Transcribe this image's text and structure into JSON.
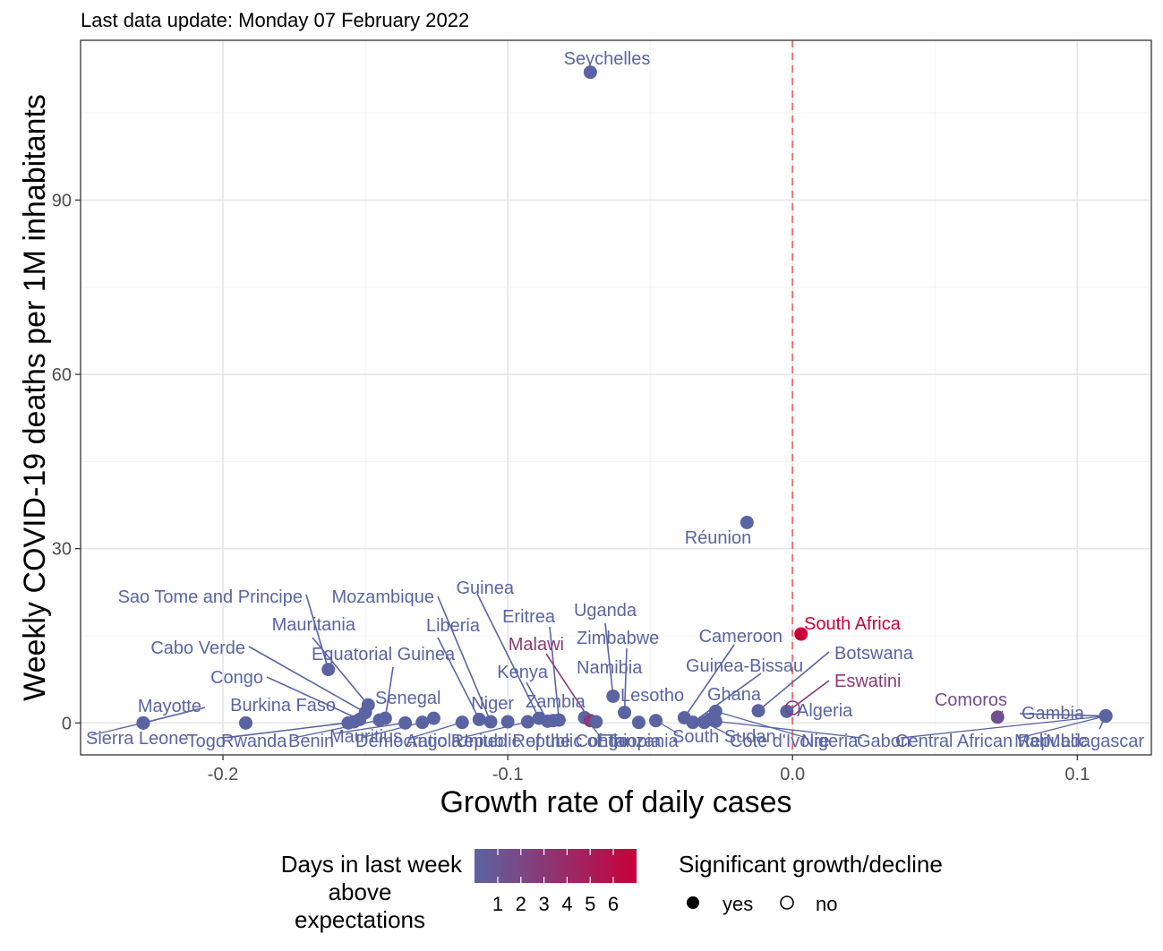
{
  "chart_data": {
    "type": "scatter",
    "subtitle": "Last data update: Monday 07 February 2022",
    "xlabel": "Growth rate of daily cases",
    "ylabel": "Weekly COVID-19 deaths per 1M inhabitants",
    "xlim": [
      -0.25,
      0.126
    ],
    "ylim": [
      -5.5,
      117.5
    ],
    "x_ticks": [
      -0.2,
      -0.1,
      0.0,
      0.1
    ],
    "x_tick_labels": [
      "-0.2",
      "-0.1",
      "0.0",
      "0.1"
    ],
    "y_ticks": [
      0,
      30,
      60,
      90
    ],
    "y_tick_labels": [
      "0",
      "30",
      "60",
      "90"
    ],
    "reference_line_x": 0,
    "grid": true,
    "points": [
      {
        "name": "Seychelles",
        "x": -0.071,
        "y": 112,
        "days": 1,
        "significant": true
      },
      {
        "name": "Réunion",
        "x": -0.016,
        "y": 34.5,
        "days": 1,
        "significant": true
      },
      {
        "name": "South Africa",
        "x": 0.003,
        "y": 15.3,
        "days": 6,
        "significant": true
      },
      {
        "name": "Sao Tome and Principe",
        "x": -0.163,
        "y": 9.2,
        "days": 1,
        "significant": true
      },
      {
        "name": "Mauritania",
        "x": -0.149,
        "y": 3.1,
        "days": 1,
        "significant": true
      },
      {
        "name": "Cabo Verde",
        "x": -0.15,
        "y": 1.8,
        "days": 1,
        "significant": true
      },
      {
        "name": "Congo",
        "x": -0.152,
        "y": 0.6,
        "days": 1,
        "significant": true
      },
      {
        "name": "Mayotte",
        "x": -0.228,
        "y": 0,
        "days": 1,
        "significant": true
      },
      {
        "name": "Sierra Leone",
        "x": -0.228,
        "y": 0,
        "days": 1,
        "significant": true
      },
      {
        "name": "Burkina Faso",
        "x": -0.192,
        "y": 0,
        "days": 1,
        "significant": true
      },
      {
        "name": "Togo",
        "x": -0.156,
        "y": 0,
        "days": 1,
        "significant": true
      },
      {
        "name": "Rwanda",
        "x": -0.154,
        "y": 0.2,
        "days": 1,
        "significant": true
      },
      {
        "name": "Benin",
        "x": -0.145,
        "y": 0.5,
        "days": 1,
        "significant": true
      },
      {
        "name": "Equatorial Guinea",
        "x": -0.143,
        "y": 0.8,
        "days": 1,
        "significant": true
      },
      {
        "name": "Mauritius",
        "x": -0.136,
        "y": 0,
        "days": 1,
        "significant": true
      },
      {
        "name": "Democratic Republic of the Congo",
        "x": -0.13,
        "y": 0.1,
        "days": 1,
        "significant": true
      },
      {
        "name": "Senegal",
        "x": -0.126,
        "y": 0.8,
        "days": 1,
        "significant": true
      },
      {
        "name": "Angola",
        "x": -0.116,
        "y": 0.1,
        "days": 1,
        "significant": true
      },
      {
        "name": "Liberia",
        "x": -0.11,
        "y": 0.6,
        "days": 1,
        "significant": true
      },
      {
        "name": "Mozambique",
        "x": -0.106,
        "y": 0.2,
        "days": 1,
        "significant": true
      },
      {
        "name": "Niger",
        "x": -0.1,
        "y": 0.2,
        "days": 1,
        "significant": true
      },
      {
        "name": "United Republic of Tanzania",
        "x": -0.093,
        "y": 0.2,
        "days": 1,
        "significant": true
      },
      {
        "name": "Guinea",
        "x": -0.089,
        "y": 0.8,
        "days": 1,
        "significant": true
      },
      {
        "name": "Kenya",
        "x": -0.086,
        "y": 0.3,
        "days": 1,
        "significant": true
      },
      {
        "name": "Zambia",
        "x": -0.084,
        "y": 0.4,
        "days": 1,
        "significant": true
      },
      {
        "name": "Eritrea",
        "x": -0.082,
        "y": 0.5,
        "days": 1,
        "significant": true
      },
      {
        "name": "Ethiopia",
        "x": -0.073,
        "y": 0.9,
        "days": 1,
        "significant": true
      },
      {
        "name": "Malawi",
        "x": -0.071,
        "y": 0.4,
        "days": 3,
        "significant": true
      },
      {
        "name": "Namibia",
        "x": -0.069,
        "y": 0.2,
        "days": 1,
        "significant": true
      },
      {
        "name": "Uganda",
        "x": -0.063,
        "y": 4.6,
        "days": 1,
        "significant": true
      },
      {
        "name": "Zimbabwe",
        "x": -0.059,
        "y": 1.8,
        "days": 1,
        "significant": true
      },
      {
        "name": "Lesotho",
        "x": -0.054,
        "y": 0.1,
        "days": 1,
        "significant": true
      },
      {
        "name": "South Sudan",
        "x": -0.048,
        "y": 0.4,
        "days": 1,
        "significant": true
      },
      {
        "name": "Cameroon",
        "x": -0.038,
        "y": 0.9,
        "days": 1,
        "significant": true
      },
      {
        "name": "Guinea-Bissau",
        "x": -0.035,
        "y": 0.1,
        "days": 1,
        "significant": true
      },
      {
        "name": "Cote d'Ivoire",
        "x": -0.031,
        "y": 0.1,
        "days": 1,
        "significant": true
      },
      {
        "name": "Ghana",
        "x": -0.029,
        "y": 0.6,
        "days": 1,
        "significant": true
      },
      {
        "name": "Nigeria",
        "x": -0.027,
        "y": 2.0,
        "days": 1,
        "significant": true
      },
      {
        "name": "Gabon",
        "x": -0.027,
        "y": 0.3,
        "days": 1,
        "significant": true
      },
      {
        "name": "Botswana",
        "x": -0.012,
        "y": 2.1,
        "days": 1,
        "significant": true
      },
      {
        "name": "Algeria",
        "x": -0.002,
        "y": 2.0,
        "days": 1,
        "significant": true
      },
      {
        "name": "Eswatini",
        "x": 0.0,
        "y": 2.6,
        "days": 3,
        "significant": false
      },
      {
        "name": "Comoros",
        "x": 0.072,
        "y": 1.0,
        "days": 2,
        "significant": true
      },
      {
        "name": "Gambia",
        "x": 0.11,
        "y": 1.2,
        "days": 1,
        "significant": true
      },
      {
        "name": "Central African Republic",
        "x": 0.11,
        "y": 1.2,
        "days": 1,
        "significant": true
      },
      {
        "name": "Mali",
        "x": 0.11,
        "y": 1.2,
        "days": 1,
        "significant": true
      },
      {
        "name": "Madagascar",
        "x": 0.11,
        "y": 1.2,
        "days": 1,
        "significant": true
      }
    ],
    "legend": {
      "position": "bottom",
      "color_title_lines": [
        "Days in last week",
        "above",
        "expectations"
      ],
      "color_low": "#5B64A3",
      "color_high": "#C8003A",
      "color_ticks": [
        "1",
        "2",
        "3",
        "4",
        "5",
        "6"
      ],
      "shape_title": "Significant growth/decline",
      "shape_items": [
        {
          "label": "yes",
          "filled": true
        },
        {
          "label": "no",
          "filled": false
        }
      ]
    }
  }
}
